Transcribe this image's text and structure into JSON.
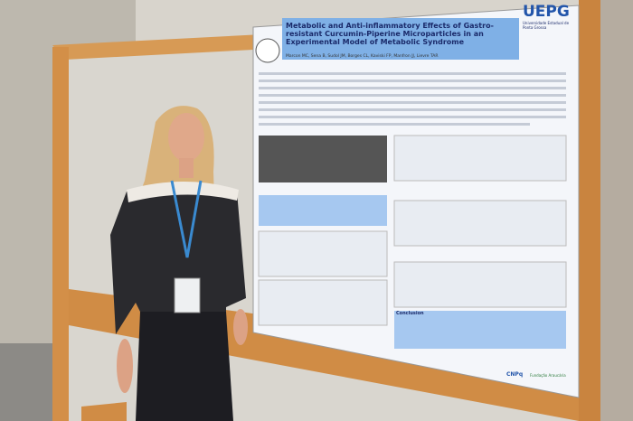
{
  "poster": {
    "title": "Metabolic and Anti-inflammatory Effects of Gastro-resistant Curcumin-Piperine Microparticles in an Experimental Model of Metabolic Syndrome",
    "logo": "UEPG",
    "institution": "Universidade Estadual de Ponta Grossa",
    "authors": "Marcon MC, Sena B, Sudol JM, Borges CL, Kaviski FP, Manfron JJ, Lievre TAR",
    "conclusion_heading": "Conclusion",
    "sponsors": [
      "CNPq",
      "Fundação Araucária"
    ]
  }
}
